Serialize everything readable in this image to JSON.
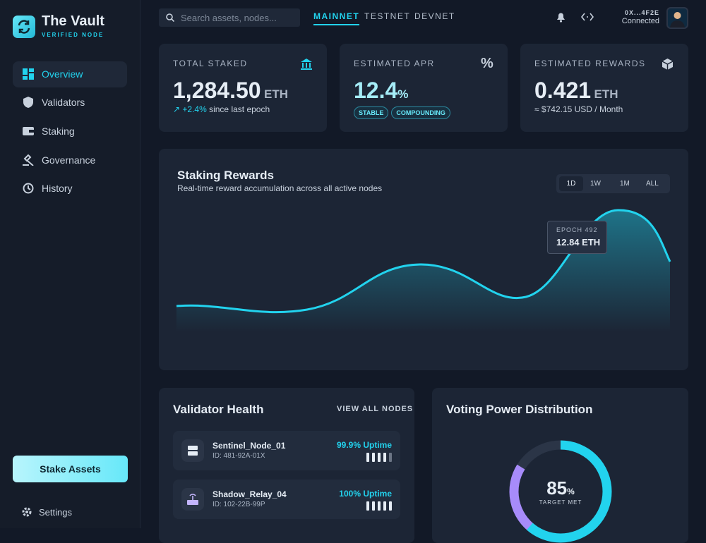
{
  "brand": {
    "name": "The Vault",
    "tagline": "VERIFIED NODE"
  },
  "nav": [
    "Overview",
    "Validators",
    "Staking",
    "Governance",
    "History"
  ],
  "cta": "Stake Assets",
  "settings": "Settings",
  "search_placeholder": "Search assets, nodes...",
  "networks": [
    "MAINNET",
    "TESTNET",
    "DEVNET"
  ],
  "account": {
    "address": "0X...4F2E",
    "status": "Connected"
  },
  "stats": [
    {
      "label": "TOTAL STAKED",
      "value": "1,284.50",
      "unit": "ETH",
      "change": "+2.4%",
      "note": "since last epoch"
    },
    {
      "label": "ESTIMATED APR",
      "value": "12.4",
      "unit": "%",
      "tags": [
        "STABLE",
        "COMPOUNDING"
      ]
    },
    {
      "label": "ESTIMATED REWARDS",
      "value": "0.421",
      "unit": "ETH",
      "note": "≈ $742.15 USD / Month"
    }
  ],
  "rewards_chart": {
    "title": "Staking Rewards",
    "subtitle": "Real-time reward accumulation across all active nodes",
    "ranges": [
      "1D",
      "1W",
      "1M",
      "ALL"
    ],
    "tooltip": {
      "label": "EPOCH 492",
      "value": "12.84 ETH"
    }
  },
  "validator_health": {
    "title": "Validator Health",
    "link": "VIEW ALL NODES",
    "nodes": [
      {
        "name": "Sentinel_Node_01",
        "id": "ID: 481-92A-01X",
        "uptime": "99.9% Uptime"
      },
      {
        "name": "Shadow_Relay_04",
        "id": "ID: 102-22B-99P",
        "uptime": "100% Uptime"
      }
    ]
  },
  "voting_power": {
    "title": "Voting Power Distribution",
    "value": "85",
    "unit": "%",
    "caption": "TARGET MET"
  }
}
